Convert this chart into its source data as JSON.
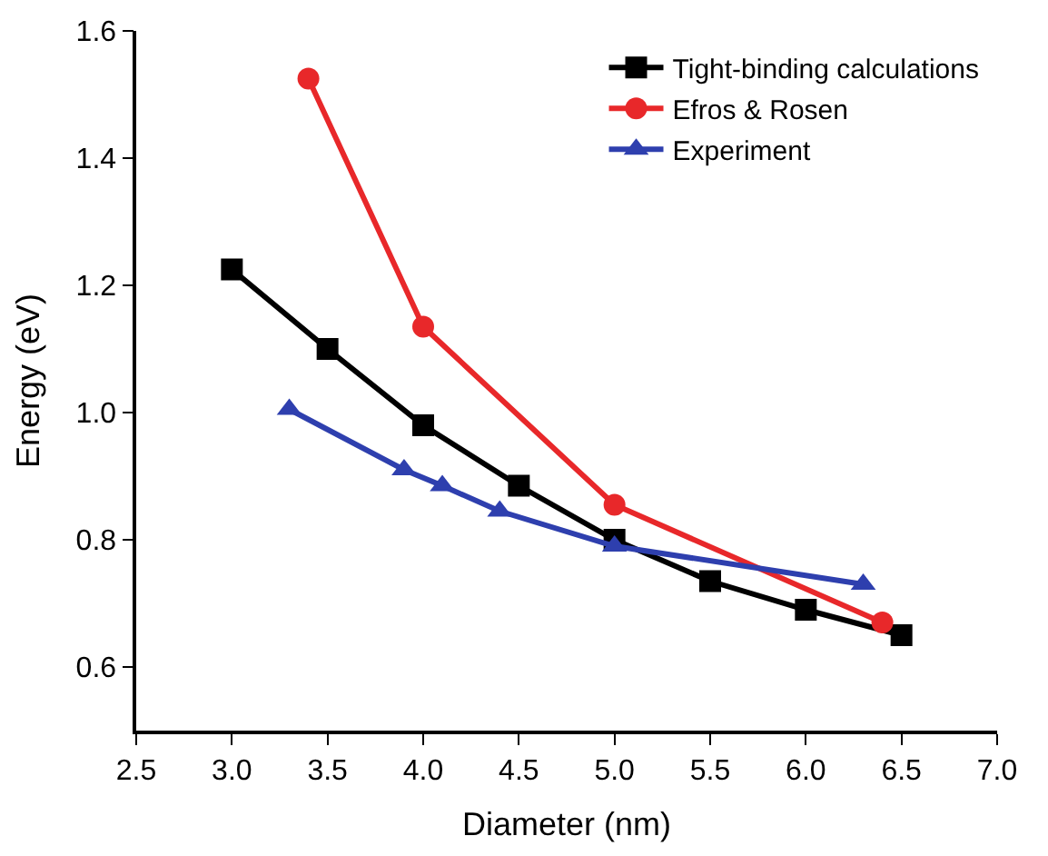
{
  "chart_data": {
    "type": "line",
    "xlabel": "Diameter (nm)",
    "ylabel": "Energy (eV)",
    "xlim": [
      2.5,
      7.0
    ],
    "xticks": [
      {
        "value": 2.5,
        "label": "2.5"
      },
      {
        "value": 3,
        "label": "3.0"
      },
      {
        "value": 3.5,
        "label": "3.5"
      },
      {
        "value": 4,
        "label": "4.0"
      },
      {
        "value": 4.5,
        "label": "4.5"
      },
      {
        "value": 5,
        "label": "5.0"
      },
      {
        "value": 5.5,
        "label": "5.5"
      },
      {
        "value": 6,
        "label": "6.0"
      },
      {
        "value": 6.5,
        "label": "6.5"
      },
      {
        "value": 7,
        "label": "7.0"
      }
    ],
    "ylim": [
      0.5,
      1.6
    ],
    "yticks": [
      {
        "value": 0.6,
        "label": "0.6"
      },
      {
        "value": 0.8,
        "label": "0.8"
      },
      {
        "value": 1,
        "label": "1.0"
      },
      {
        "value": 1.2,
        "label": "1.2"
      },
      {
        "value": 1.4,
        "label": "1.4"
      },
      {
        "value": 1.6,
        "label": "1.6"
      }
    ],
    "legend": "top right",
    "line_style": "solid",
    "series": [
      {
        "name": "Tight-binding calculations",
        "color": "#000000",
        "marker": "square",
        "x": [
          3.0,
          3.5,
          4.0,
          4.5,
          5.0,
          5.5,
          6.0,
          6.5
        ],
        "values": [
          1.225,
          1.1,
          0.98,
          0.885,
          0.8,
          0.735,
          0.69,
          0.65
        ]
      },
      {
        "name": "Efros & Rosen",
        "color": "#e8282a",
        "marker": "circle",
        "x": [
          3.4,
          4.0,
          5.0,
          6.4
        ],
        "values": [
          1.525,
          1.135,
          0.855,
          0.67
        ]
      },
      {
        "name": "Experiment",
        "color": "#2e3fae",
        "marker": "triangle",
        "x": [
          3.3,
          3.9,
          4.1,
          4.4,
          5.0,
          6.3
        ],
        "values": [
          1.005,
          0.91,
          0.885,
          0.845,
          0.79,
          0.73
        ]
      }
    ]
  }
}
